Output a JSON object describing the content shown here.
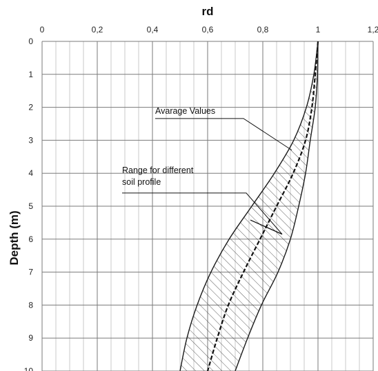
{
  "chart_data": {
    "type": "line",
    "title": "",
    "xlabel": "rd",
    "ylabel": "Depth (m)",
    "xlim": [
      0,
      1.2
    ],
    "ylim": [
      0,
      10
    ],
    "y_inverted": true,
    "x_axis_position": "top",
    "x_ticks": [
      "0",
      "0,2",
      "0,4",
      "0,6",
      "0,8",
      "1",
      "1,2"
    ],
    "y_ticks": [
      "0",
      "1",
      "2",
      "3",
      "4",
      "5",
      "6",
      "7",
      "8",
      "9",
      "10"
    ],
    "grid": {
      "major": true,
      "minor_x_step": 0.05
    },
    "series": [
      {
        "name": "",
        "style": "solid",
        "points": [
          [
            1.0,
            0
          ],
          [
            0.985,
            1
          ],
          [
            0.958,
            2
          ],
          [
            0.912,
            3
          ],
          [
            0.842,
            4
          ],
          [
            0.76,
            5
          ],
          [
            0.678,
            6
          ],
          [
            0.612,
            7
          ],
          [
            0.562,
            8
          ],
          [
            0.525,
            9
          ],
          [
            0.5,
            10
          ]
        ]
      },
      {
        "name": "",
        "style": "dashed",
        "points": [
          [
            1.0,
            0
          ],
          [
            0.99,
            1
          ],
          [
            0.978,
            2
          ],
          [
            0.955,
            3
          ],
          [
            0.91,
            4
          ],
          [
            0.85,
            5
          ],
          [
            0.79,
            6
          ],
          [
            0.73,
            7
          ],
          [
            0.675,
            8
          ],
          [
            0.635,
            9
          ],
          [
            0.6,
            10
          ]
        ]
      },
      {
        "name": "",
        "style": "solid",
        "points": [
          [
            1.0,
            0
          ],
          [
            0.998,
            1
          ],
          [
            0.99,
            2
          ],
          [
            0.972,
            3
          ],
          [
            0.955,
            4
          ],
          [
            0.93,
            5
          ],
          [
            0.9,
            6
          ],
          [
            0.855,
            7
          ],
          [
            0.795,
            8
          ],
          [
            0.745,
            9
          ],
          [
            0.7,
            10
          ]
        ]
      }
    ],
    "hatched_band": {
      "between_series": [
        0,
        2
      ]
    },
    "annotations": [
      {
        "lines": [
          "Avarage Values"
        ],
        "text_at": [
          0.41,
          2.2
        ],
        "leader": [
          [
            0.41,
            2.34
          ],
          [
            0.73,
            2.34
          ],
          [
            0.905,
            3.3
          ]
        ]
      },
      {
        "lines": [
          "Range for different",
          "soil profile"
        ],
        "text_at": [
          0.29,
          4.0
        ],
        "leader": [
          [
            0.29,
            4.6
          ],
          [
            0.74,
            4.6
          ],
          [
            0.87,
            5.85
          ]
        ]
      }
    ],
    "range_marker": {
      "points": [
        [
          0.755,
          5.42
        ],
        [
          0.87,
          5.85
        ]
      ]
    }
  }
}
